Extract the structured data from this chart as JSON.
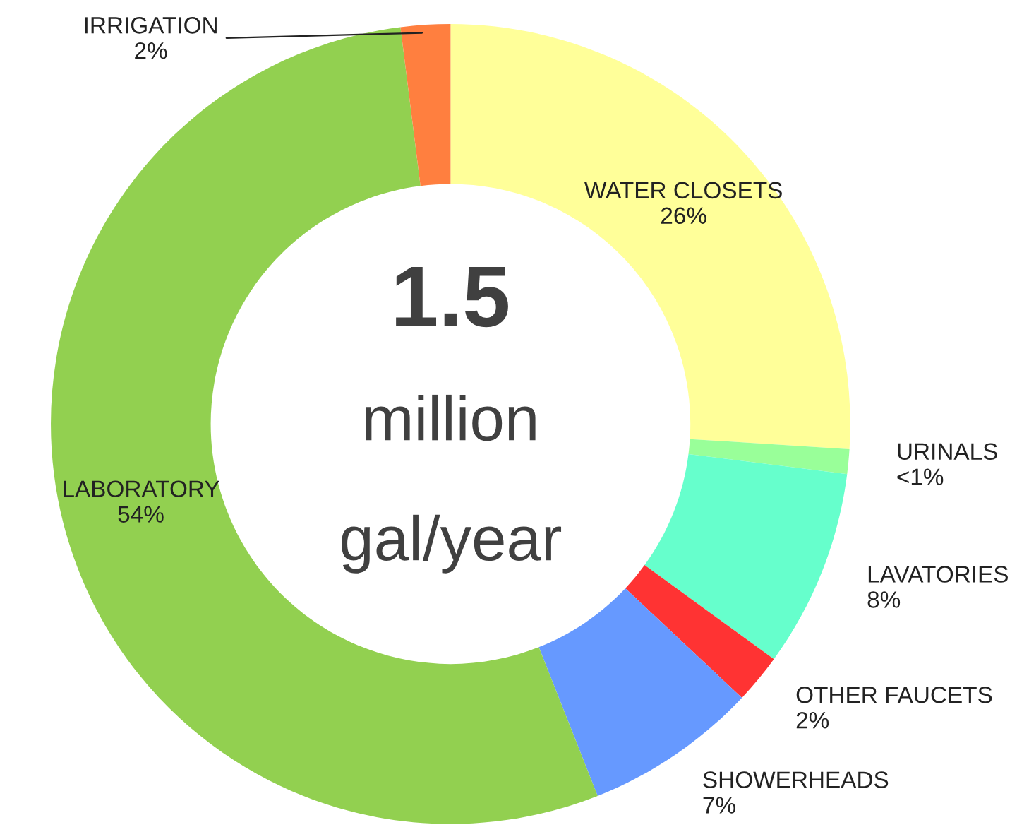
{
  "chart_data": {
    "type": "donut",
    "categories": [
      "WATER CLOSETS",
      "URINALS",
      "LAVATORIES",
      "OTHER FAUCETS",
      "SHOWERHEADS",
      "LABORATORY",
      "IRRIGATION"
    ],
    "values": [
      26,
      1,
      8,
      2,
      7,
      54,
      2
    ],
    "value_labels": [
      "26%",
      "<1%",
      "8%",
      "2%",
      "7%",
      "54%",
      "2%"
    ],
    "colors": [
      "#ffff99",
      "#99ff99",
      "#66ffcc",
      "#ff3333",
      "#6699ff",
      "#92d050",
      "#ff7f3f"
    ],
    "annotations": [
      "1.5",
      "million",
      "gal/year"
    ],
    "legend": false
  }
}
